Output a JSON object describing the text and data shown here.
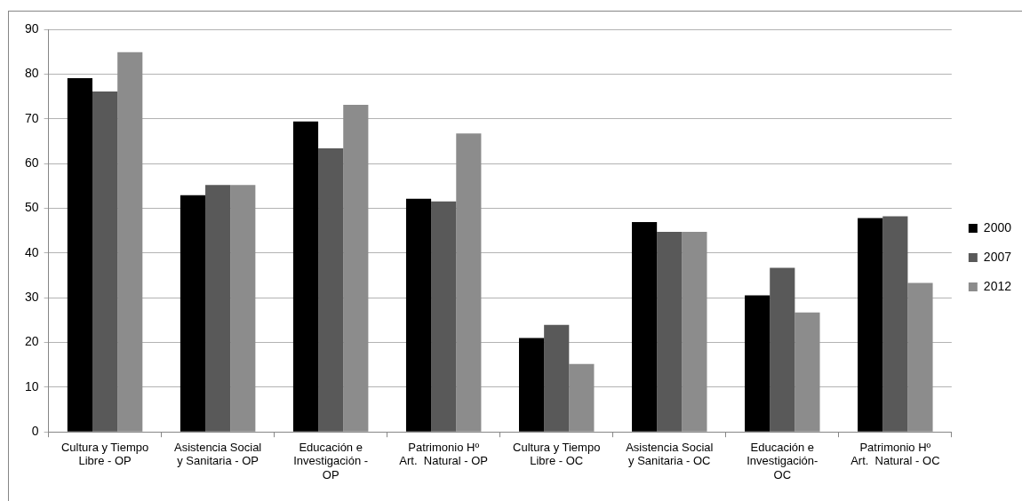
{
  "chart_data": {
    "type": "bar",
    "categories": [
      "Cultura y Tiempo Libre - OP",
      "Asistencia Social y Sanitaria - OP",
      "Educación e Investigación - OP",
      "Patrimonio Hº Art.  Natural - OP",
      "Cultura y Tiempo Libre - OC",
      "Asistencia Social y Sanitaria - OC",
      "Educación e Investigación- OC",
      "Patrimonio Hº Art.  Natural - OC"
    ],
    "series": [
      {
        "name": "2000",
        "color": "#000000",
        "values": [
          79.1,
          52.9,
          69.4,
          52.1,
          21,
          46.9,
          30.5,
          47.8
        ]
      },
      {
        "name": "2007",
        "color": "#595959",
        "values": [
          76.1,
          55.2,
          63.4,
          51.5,
          23.9,
          44.7,
          36.7,
          48.2
        ]
      },
      {
        "name": "2012",
        "color": "#8c8c8c",
        "values": [
          84.9,
          55.2,
          73.1,
          66.7,
          15.2,
          44.7,
          26.7,
          33.3
        ]
      }
    ],
    "ylim": [
      0,
      90
    ],
    "yticks": [
      0,
      10,
      20,
      30,
      40,
      50,
      60,
      70,
      80,
      90
    ],
    "grid": "y",
    "legend": "right"
  }
}
